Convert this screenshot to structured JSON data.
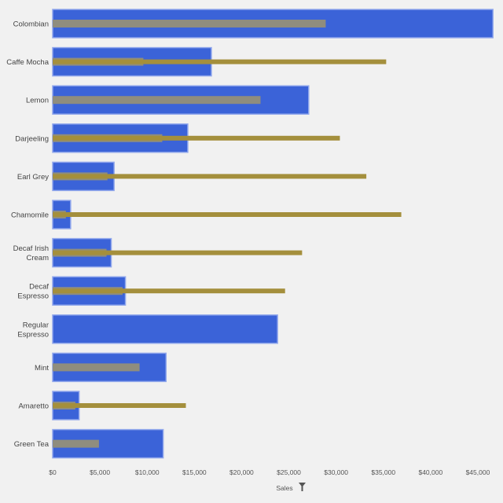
{
  "chart_data": {
    "type": "bar",
    "orientation": "horizontal",
    "categories": [
      "Colombian",
      "Caffe Mocha",
      "Lemon",
      "Darjeeling",
      "Earl Grey",
      "Chamomile",
      "Decaf Irish Cream",
      "Decaf Espresso",
      "Regular Espresso",
      "Mint",
      "Amaretto",
      "Green Tea"
    ],
    "category_label_lines": [
      [
        "Colombian"
      ],
      [
        "Caffe Mocha"
      ],
      [
        "Lemon"
      ],
      [
        "Darjeeling"
      ],
      [
        "Earl Grey"
      ],
      [
        "Chamomile"
      ],
      [
        "Decaf Irish",
        "Cream"
      ],
      [
        "Decaf",
        "Espresso"
      ],
      [
        "Regular",
        "Espresso"
      ],
      [
        "Mint"
      ],
      [
        "Amaretto"
      ],
      [
        "Green Tea"
      ]
    ],
    "series": [
      {
        "values": [
          46600,
          16800,
          27100,
          14300,
          6500,
          1900,
          6200,
          7700,
          23800,
          12000,
          2800,
          11700
        ]
      },
      {
        "values": [
          28900,
          9600,
          22000,
          11600,
          5800,
          1400,
          5700,
          7400,
          null,
          9200,
          2400,
          4900
        ]
      },
      {
        "values": [
          null,
          35300,
          null,
          30400,
          33200,
          36900,
          26400,
          24600,
          null,
          null,
          14100,
          null
        ]
      }
    ],
    "series_colors": [
      "#3b63d8",
      "#8f8d7e",
      "#a48f3c"
    ],
    "xlim": [
      0,
      47000
    ],
    "x_ticks": [
      0,
      5000,
      10000,
      15000,
      20000,
      25000,
      30000,
      35000,
      40000,
      45000
    ],
    "x_tick_labels": [
      "$0",
      "$5,000",
      "$10,000",
      "$15,000",
      "$20,000",
      "$25,000",
      "$30,000",
      "$35,000",
      "$40,000",
      "$45,000"
    ],
    "xlabel": "Sales",
    "filter_icon": "filter-icon",
    "grid": false
  }
}
